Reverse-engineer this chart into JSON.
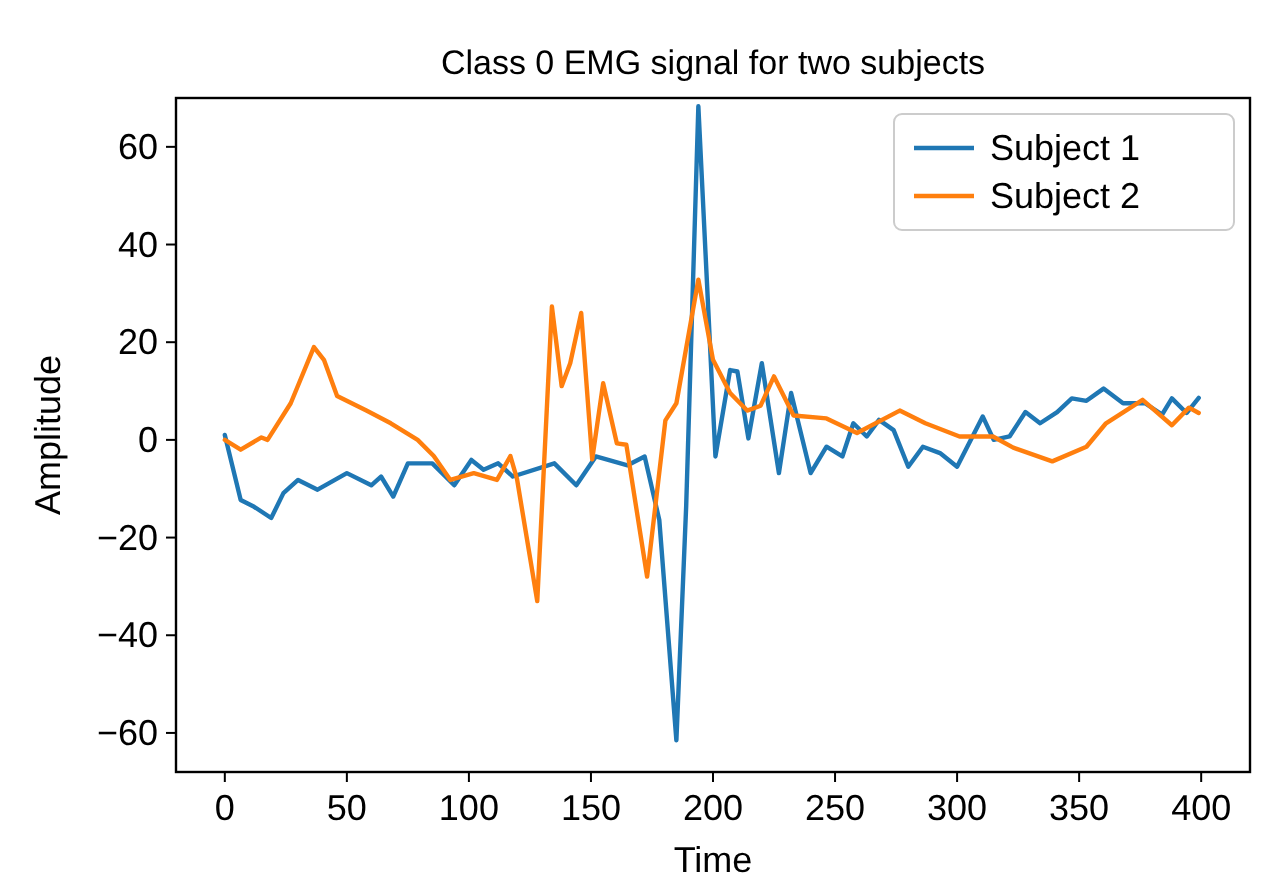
{
  "chart_data": {
    "type": "line",
    "title": "Class 0 EMG signal for two subjects",
    "xlabel": "Time",
    "ylabel": "Amplitude",
    "xlim": [
      -20,
      420
    ],
    "xticks": [
      0,
      50,
      100,
      150,
      200,
      250,
      300,
      350,
      400
    ],
    "ylim": [
      -68,
      70
    ],
    "yticks": [
      {
        "value": -60,
        "label": "−60"
      },
      {
        "value": -40,
        "label": "−40"
      },
      {
        "value": -20,
        "label": "−20"
      },
      0,
      20,
      40,
      60
    ],
    "legend": "top right",
    "grid": false,
    "line_style": "solid",
    "marker": "none",
    "series": [
      {
        "name": "Subject 1",
        "color": "#1f77b4",
        "x": [
          0,
          6.5,
          12,
          19,
          24,
          30,
          38,
          50,
          60,
          64,
          69,
          75,
          85,
          94,
          101,
          106,
          112,
          118,
          135,
          144,
          152,
          165,
          172,
          178,
          185,
          189,
          194,
          201,
          207,
          210,
          214.5,
          220,
          227,
          232,
          240,
          246.5,
          253,
          257.5,
          263,
          268,
          274,
          280,
          286,
          293,
          300,
          310.5,
          315,
          321.5,
          328,
          334,
          341,
          347,
          353,
          360,
          368,
          377,
          384,
          388,
          394,
          399
        ],
        "values": [
          1,
          -12.3,
          -13.7,
          -16,
          -10.9,
          -8.2,
          -10.2,
          -6.8,
          -9.3,
          -7.5,
          -11.6,
          -4.8,
          -4.8,
          -9.3,
          -4.1,
          -6.1,
          -4.8,
          -7.5,
          -4.8,
          -9.3,
          -3.4,
          -5.2,
          -3.4,
          -16.4,
          -61.5,
          -13.7,
          68.3,
          -3.4,
          14.3,
          14,
          0.3,
          15.7,
          -6.8,
          9.6,
          -6.8,
          -1.4,
          -3.4,
          3.4,
          0.7,
          4.1,
          2,
          -5.5,
          -1.4,
          -2.7,
          -5.5,
          4.8,
          0,
          0.7,
          5.7,
          3.4,
          5.7,
          8.5,
          8,
          10.5,
          7.5,
          7.5,
          5.2,
          8.5,
          5.5,
          8.6
        ]
      },
      {
        "name": "Subject 2",
        "color": "#ff7f0e",
        "x": [
          0,
          6.5,
          15,
          17.5,
          27,
          36.5,
          40.6,
          46,
          58,
          68,
          79,
          85.6,
          92.4,
          102,
          111.5,
          117,
          119.7,
          128,
          134,
          138,
          141.5,
          146,
          150.5,
          155,
          160.6,
          164.5,
          173,
          180.5,
          185,
          194,
          200,
          207,
          214,
          219.5,
          225,
          233,
          246.5,
          259,
          276.5,
          287,
          301,
          314.7,
          323,
          339,
          353,
          361,
          376,
          388,
          395,
          399
        ],
        "values": [
          0,
          -2,
          0.5,
          0,
          7.5,
          19,
          16.4,
          9,
          6,
          3.4,
          0,
          -3.3,
          -8.2,
          -6.8,
          -8.2,
          -3.3,
          -8,
          -33,
          27.3,
          11,
          15.7,
          26,
          -4,
          11.6,
          -0.7,
          -1,
          -28,
          4,
          7.5,
          32.8,
          16.4,
          9.6,
          6,
          7,
          13,
          5,
          4.4,
          1.4,
          6,
          3.4,
          0.7,
          0.7,
          -1.6,
          -4.4,
          -1.4,
          3.4,
          8.2,
          3,
          6.6,
          5.5
        ]
      }
    ]
  }
}
